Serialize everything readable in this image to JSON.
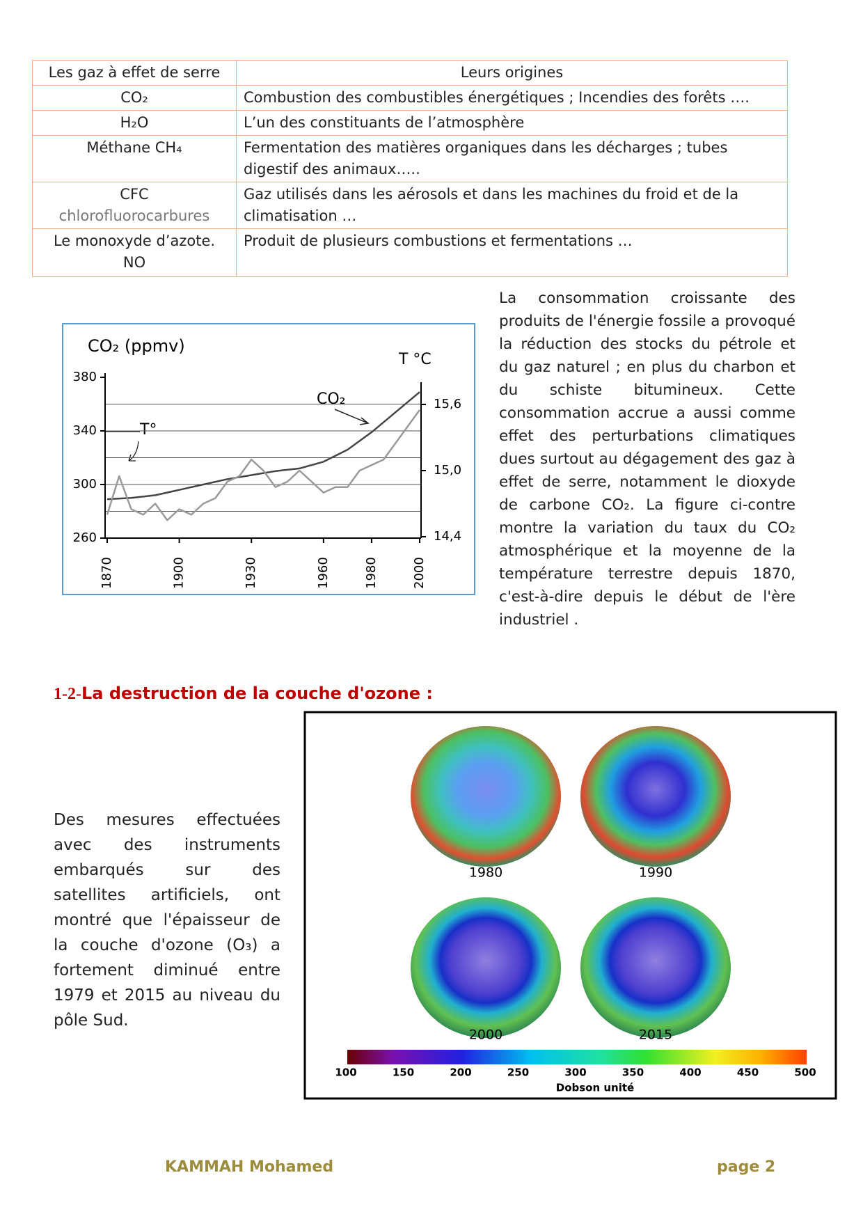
{
  "table": {
    "header": [
      "Les gaz à effet de serre",
      "Leurs origines"
    ],
    "rows": [
      {
        "gas": [
          "CO₂"
        ],
        "origin": "Combustion des combustibles énergétiques ; Incendies des forêts …."
      },
      {
        "gas": [
          "H₂O"
        ],
        "origin": "L’un des constituants de l’atmosphère"
      },
      {
        "gas": [
          "Méthane CH₄"
        ],
        "origin": "Fermentation des matières organiques dans les décharges ; tubes digestif des animaux….."
      },
      {
        "gas": [
          "CFC",
          "chlorofluorocarbures"
        ],
        "origin": "Gaz utilisés dans les aérosols et dans les machines du froid et de la climatisation …"
      },
      {
        "gas": [
          "Le monoxyde d’azote.",
          "NO"
        ],
        "origin": "Produit de plusieurs combustions et fermentations …"
      }
    ]
  },
  "chart_data": {
    "type": "line",
    "y_label": "CO₂ (ppmv)",
    "y2_label": "T °C",
    "xlim": [
      1870,
      2000
    ],
    "xticks": [
      1870,
      1900,
      1930,
      1960,
      1980,
      2000
    ],
    "ylim": [
      260,
      380
    ],
    "yticks": [
      260,
      300,
      340,
      380
    ],
    "y2lim": [
      14.4,
      15.6
    ],
    "y2ticks": [
      {
        "value": 14.4,
        "label": "14,4"
      },
      {
        "value": 15.0,
        "label": "15,0"
      },
      {
        "value": 15.6,
        "label": "15,6"
      }
    ],
    "grid_values": [
      280,
      300,
      320,
      340,
      360
    ],
    "series": [
      {
        "name": "CO₂",
        "color": "#444444",
        "x": [
          1870,
          1880,
          1890,
          1900,
          1910,
          1920,
          1930,
          1940,
          1950,
          1960,
          1970,
          1980,
          1990,
          2000
        ],
        "values": [
          289,
          290,
          292,
          296,
          300,
          304,
          307,
          310,
          312,
          317,
          326,
          339,
          354,
          369
        ]
      },
      {
        "name": "T°",
        "color": "#999999",
        "axis": "y2",
        "x": [
          1870,
          1875,
          1880,
          1885,
          1890,
          1895,
          1900,
          1905,
          1910,
          1915,
          1920,
          1925,
          1930,
          1935,
          1940,
          1945,
          1950,
          1955,
          1960,
          1965,
          1970,
          1975,
          1980,
          1985,
          1990,
          1995,
          2000
        ],
        "values": [
          14.6,
          14.95,
          14.65,
          14.6,
          14.7,
          14.55,
          14.65,
          14.6,
          14.7,
          14.75,
          14.9,
          14.95,
          15.1,
          15.0,
          14.85,
          14.9,
          15.0,
          14.9,
          14.8,
          14.85,
          14.85,
          15.0,
          15.05,
          15.1,
          15.25,
          15.4,
          15.55
        ]
      }
    ]
  },
  "text_right": "La consommation croissante des produits de l'énergie fossile a provoqué la réduction des stocks du pétrole et du gaz naturel ; en plus du charbon et du schiste bitumineux. Cette consommation accrue a aussi comme effet des perturbations climatiques dues surtout au dégagement des gaz à effet de serre, notamment le dioxyde de carbone CO₂. La figure ci-contre montre la variation du taux du CO₂ atmosphérique et la moyenne de la température terrestre depuis 1870, c'est-à-dire depuis le début de l'ère industriel .",
  "section": {
    "number": "1-2-",
    "title": "La destruction de la couche d'ozone :"
  },
  "text_left": "Des mesures effectuées avec des instruments embarqués sur des satellites artificiels, ont montré que l'épaisseur de la couche d'ozone (O₃) a fortement diminué entre 1979 et 2015 au niveau du pôle Sud.",
  "ozone": {
    "years": [
      "1980",
      "1990",
      "2000",
      "2015"
    ],
    "scale_ticks": [
      "100",
      "150",
      "200",
      "250",
      "300",
      "350",
      "400",
      "450",
      "500"
    ],
    "scale_label": "Dobson unité"
  },
  "footer": {
    "author": "KAMMAH Mohamed",
    "page": "page 2"
  }
}
